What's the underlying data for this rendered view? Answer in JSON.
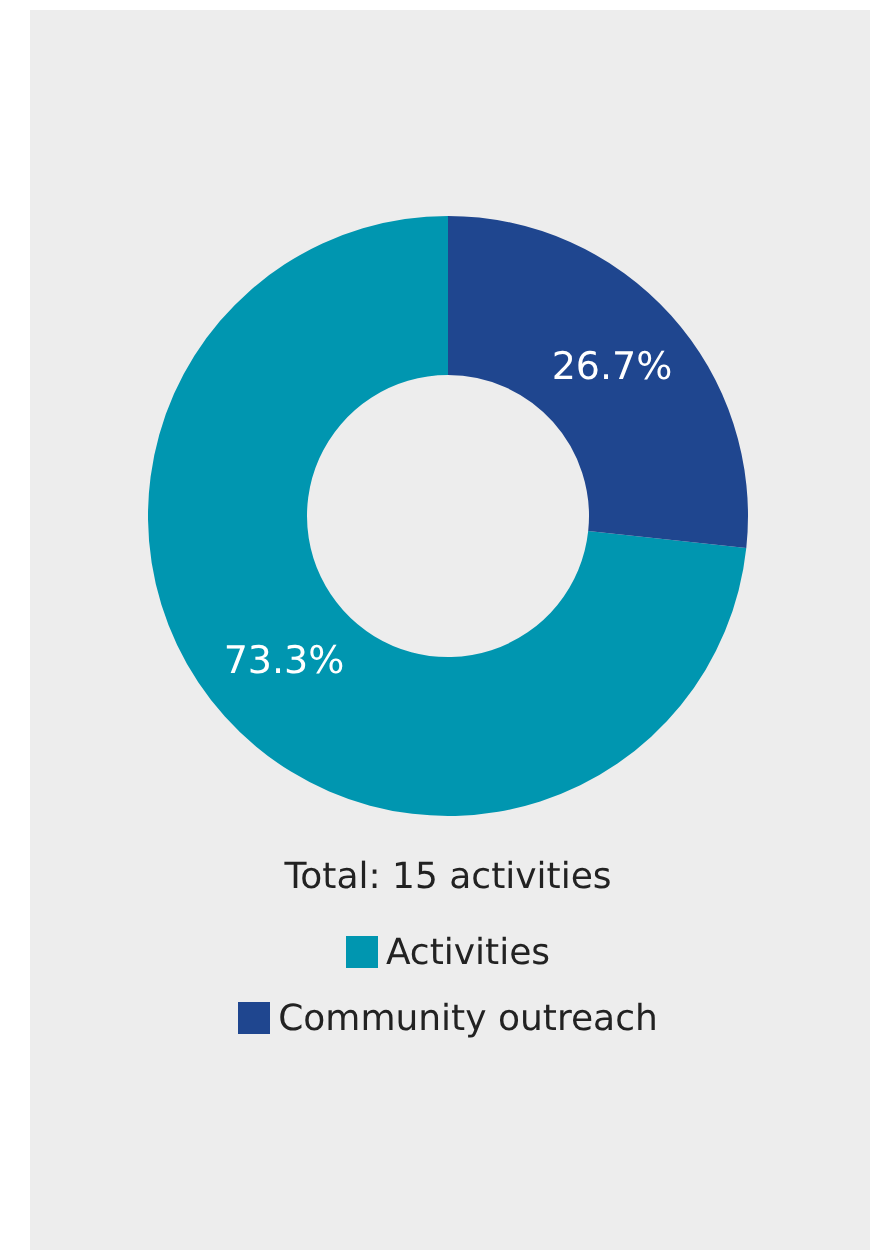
{
  "chart_data": {
    "type": "donut",
    "categories": [
      "Activities",
      "Community outreach"
    ],
    "values": [
      73.3,
      26.7
    ],
    "colors": [
      "#0096b0",
      "#1f468f"
    ],
    "value_labels": [
      "73.3%",
      "26.7%"
    ],
    "annotations": [
      "Total: 15 activities"
    ],
    "legend": "bottom"
  }
}
